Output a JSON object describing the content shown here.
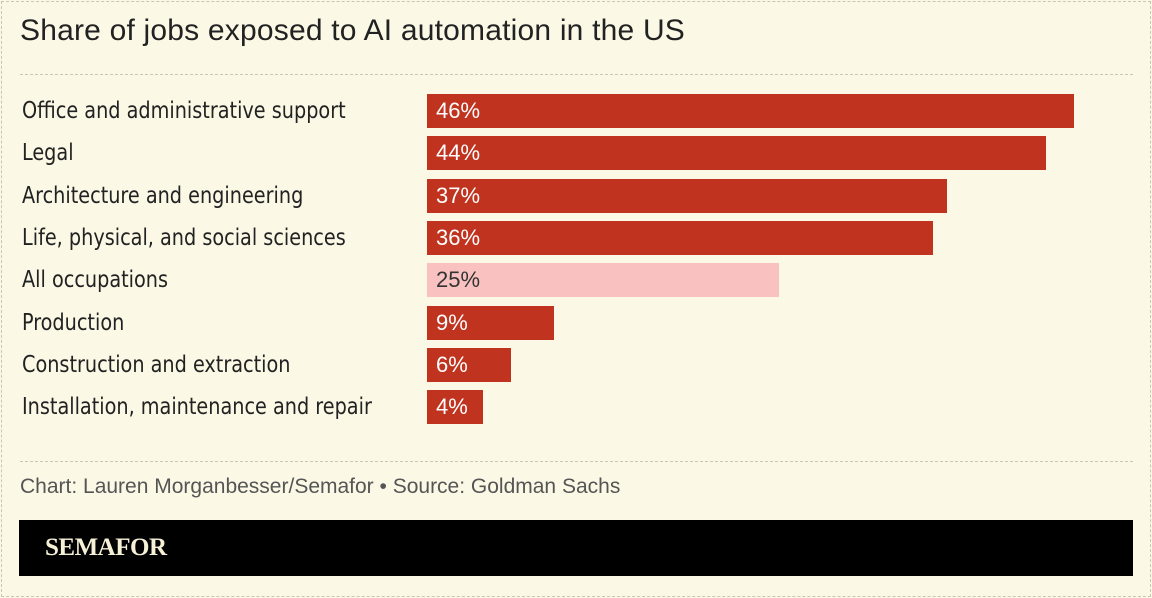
{
  "chart_data": {
    "type": "bar",
    "orientation": "horizontal",
    "title": "Share of jobs exposed to AI automation in the US",
    "categories": [
      "Office and administrative support",
      "Legal",
      "Architecture and engineering",
      "Life, physical, and social sciences",
      "All occupations",
      "Production",
      "Construction and extraction",
      "Installation, maintenance and repair"
    ],
    "values": [
      46,
      44,
      37,
      36,
      25,
      9,
      6,
      4
    ],
    "value_labels": [
      "46%",
      "44%",
      "37%",
      "36%",
      "25%",
      "9%",
      "6%",
      "4%"
    ],
    "highlight_category": "All occupations",
    "colors": {
      "bar": "#c0331f",
      "highlight": "#f9c2c0",
      "bar_text": "#ffffff",
      "highlight_text": "#333333"
    },
    "xlim": [
      0,
      46
    ],
    "grid": false
  },
  "footer": {
    "credit": "Chart: Lauren Morganbesser/Semafor • Source: Goldman Sachs",
    "brand": "SEMAFOR"
  }
}
